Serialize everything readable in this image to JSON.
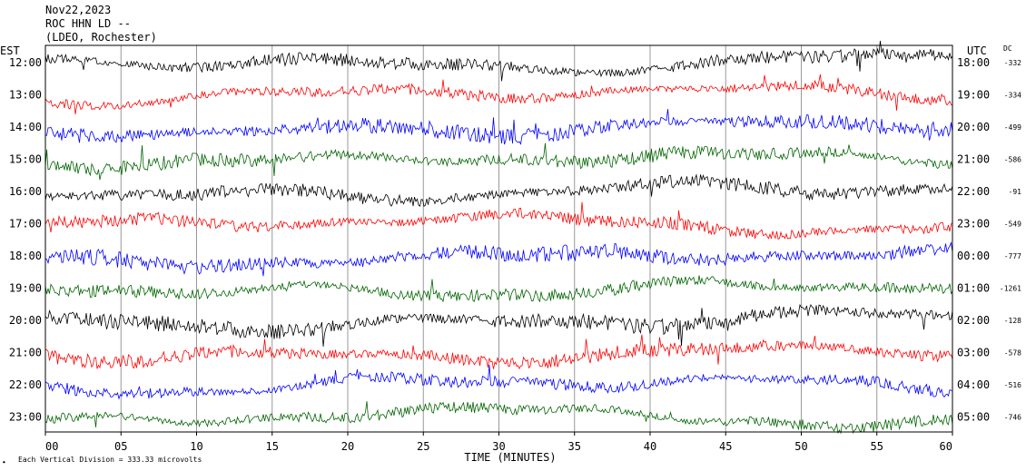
{
  "header": {
    "date": "Nov22,2023",
    "station": "ROC HHN LD --",
    "network": "(LDEO, Rochester)"
  },
  "chart_data": {
    "type": "line",
    "title": "",
    "xlabel": "TIME (MINUTES)",
    "left_axis_label": "EST",
    "right_axis_label": "UTC",
    "dc_label": "DC",
    "xlim": [
      0,
      60
    ],
    "x_ticks": [
      "00",
      "05",
      "10",
      "15",
      "20",
      "25",
      "30",
      "35",
      "40",
      "45",
      "50",
      "55",
      "60"
    ],
    "grid_vertical": true,
    "series_colors": [
      "#000000",
      "#ff0000",
      "#0000ff",
      "#006400"
    ],
    "rows": [
      {
        "est": "12:00",
        "utc": "18:00",
        "dc": "-332"
      },
      {
        "est": "13:00",
        "utc": "19:00",
        "dc": "-334"
      },
      {
        "est": "14:00",
        "utc": "20:00",
        "dc": "-499"
      },
      {
        "est": "15:00",
        "utc": "21:00",
        "dc": "-586"
      },
      {
        "est": "16:00",
        "utc": "22:00",
        "dc": "-91"
      },
      {
        "est": "17:00",
        "utc": "23:00",
        "dc": "-549"
      },
      {
        "est": "18:00",
        "utc": "00:00",
        "dc": "-777"
      },
      {
        "est": "19:00",
        "utc": "01:00",
        "dc": "-1261"
      },
      {
        "est": "20:00",
        "utc": "02:00",
        "dc": "-128"
      },
      {
        "est": "21:00",
        "utc": "03:00",
        "dc": "-578"
      },
      {
        "est": "22:00",
        "utc": "04:00",
        "dc": "-516"
      },
      {
        "est": "23:00",
        "utc": "05:00",
        "dc": "-746"
      }
    ],
    "scale_note": "Each Vertical Division = 333.33 microvolts"
  }
}
